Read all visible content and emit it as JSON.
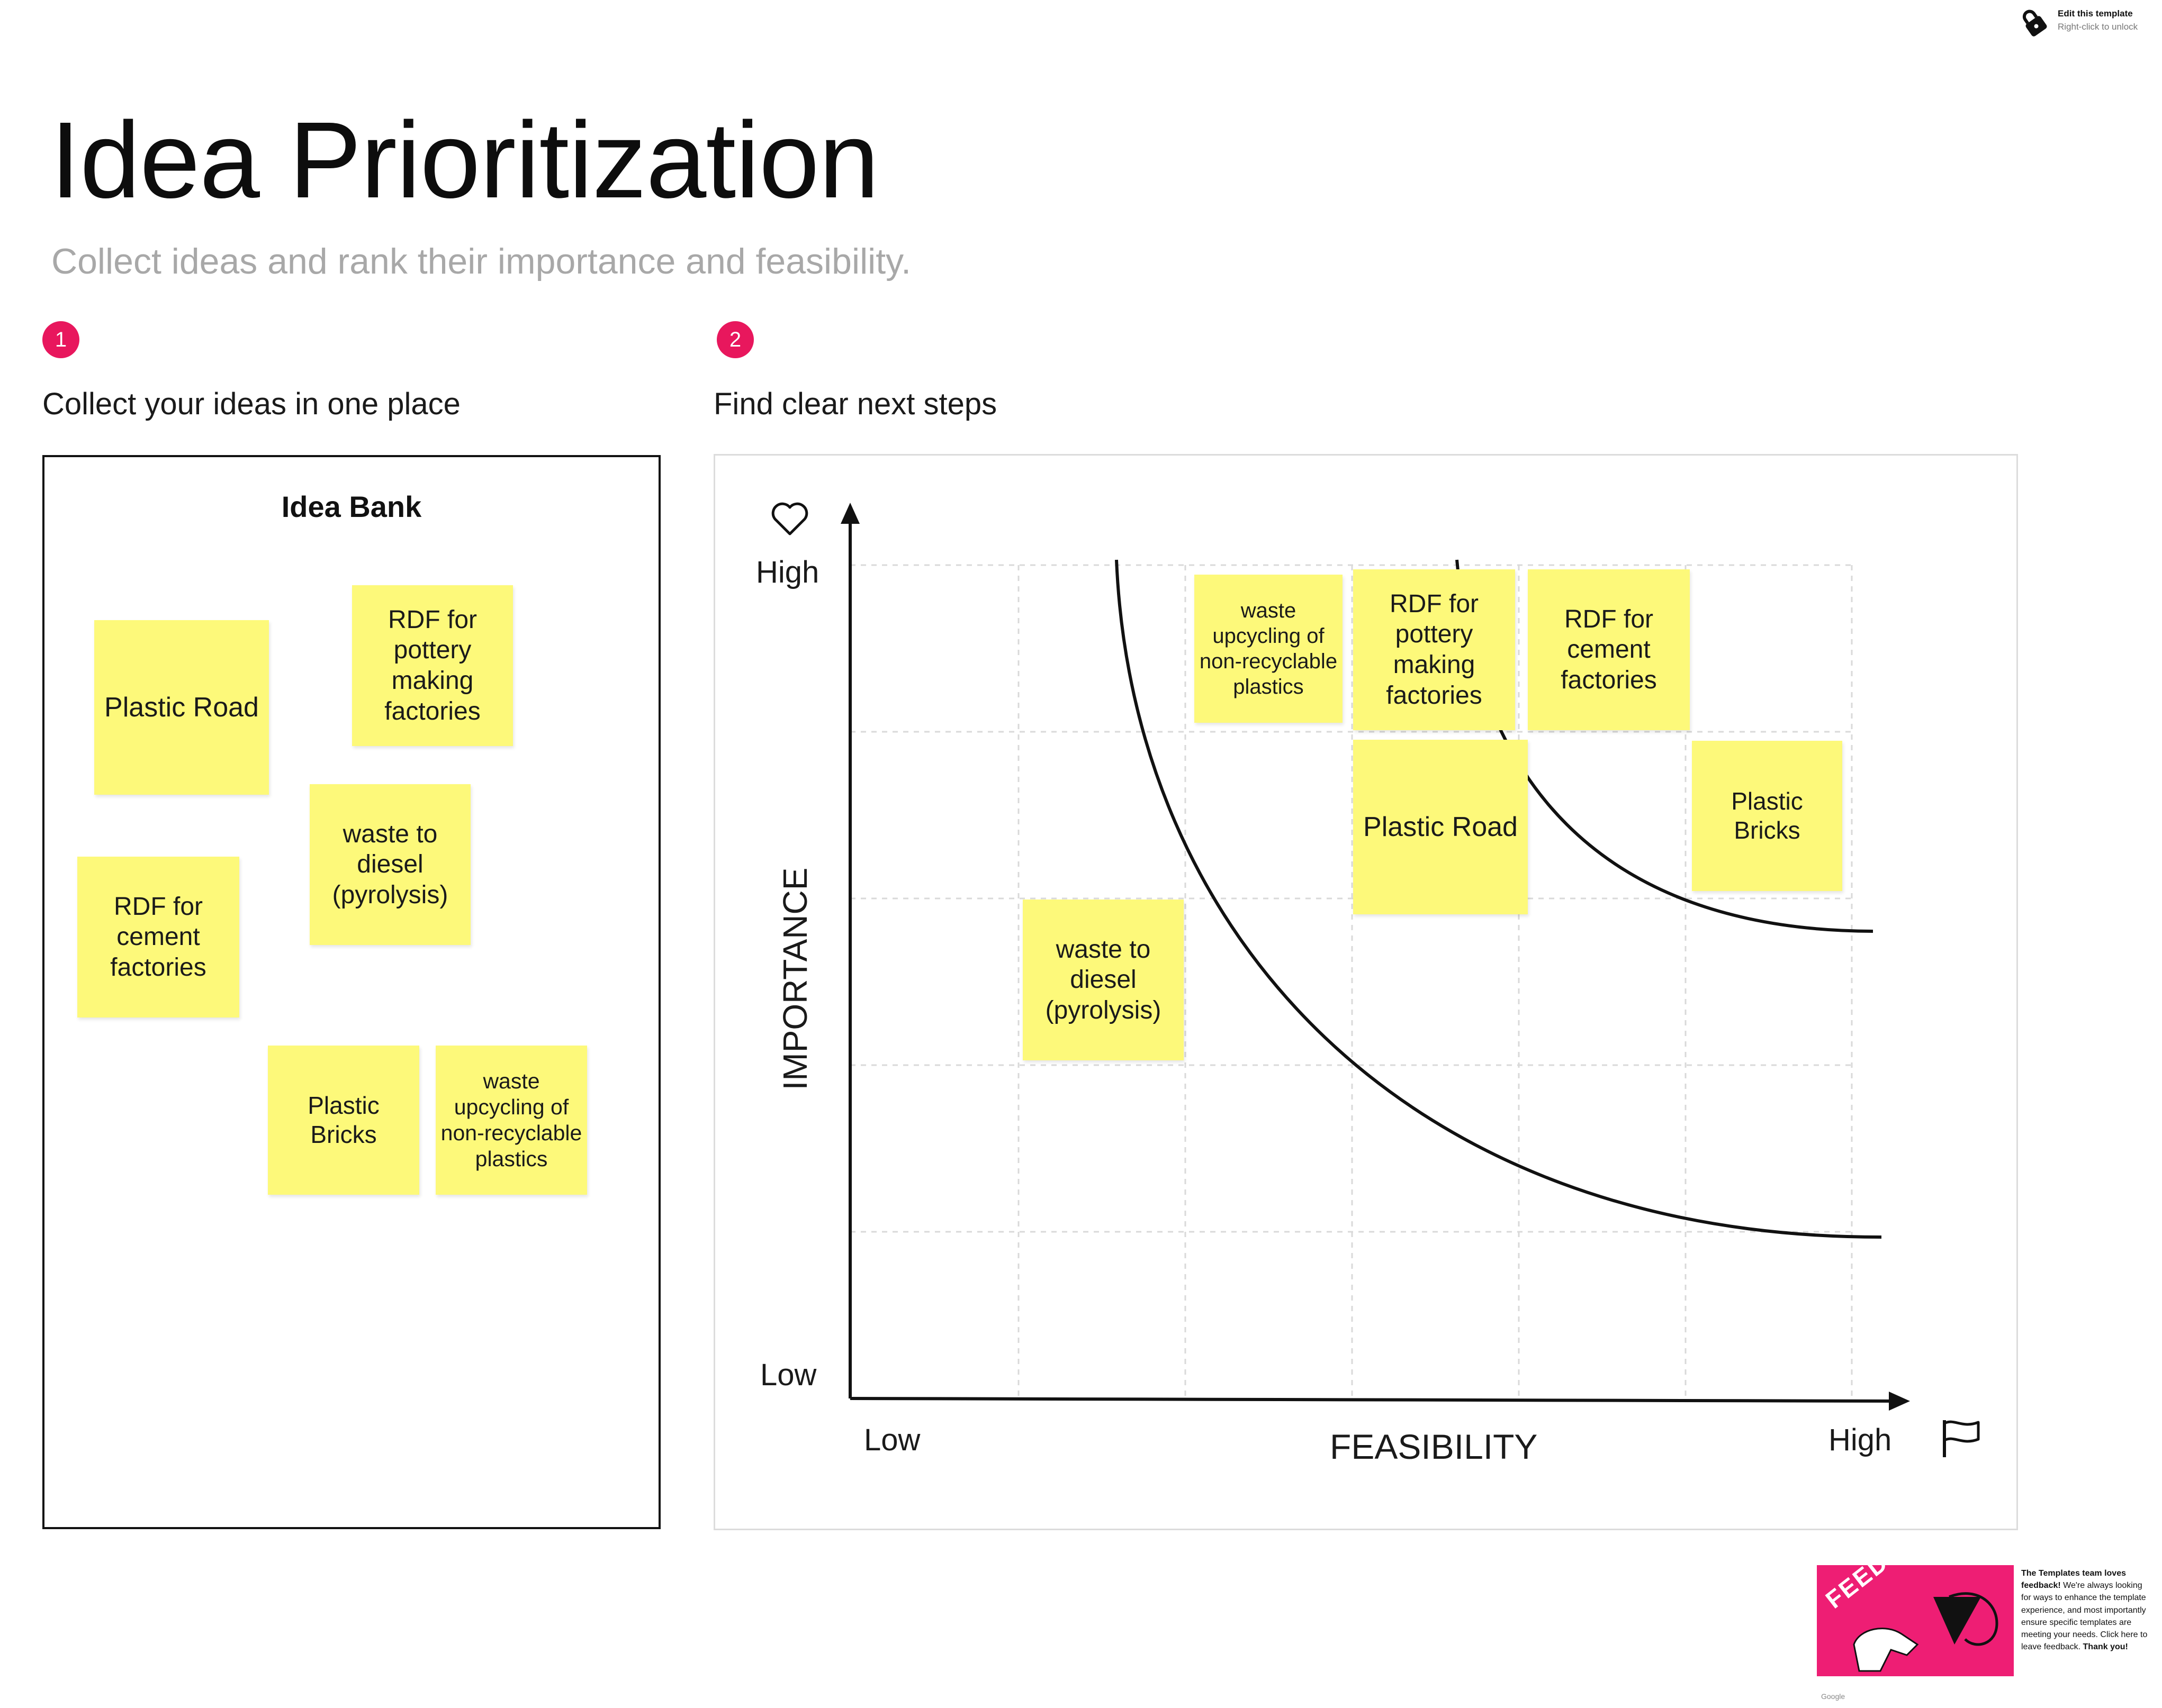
{
  "page": {
    "title": "Idea Prioritization",
    "subtitle": "Collect ideas and rank their importance and feasibility."
  },
  "edit_hint": {
    "line1": "Edit this template",
    "line2": "Right-click to unlock",
    "icon": "lock-icon"
  },
  "steps": [
    {
      "number": "1",
      "label": "Collect your ideas in one place"
    },
    {
      "number": "2",
      "label": "Find clear next steps"
    }
  ],
  "idea_bank": {
    "title": "Idea Bank",
    "notes": [
      "Plastic Road",
      "RDF for pottery making factories",
      "waste to diesel (pyrolysis)",
      "RDF for cement factories",
      "Plastic Bricks",
      "waste upcycling of non-recyclable plastics"
    ]
  },
  "matrix": {
    "y_axis": {
      "label": "IMPORTANCE",
      "high": "High",
      "low": "Low",
      "icon": "heart-icon"
    },
    "x_axis": {
      "label": "FEASIBILITY",
      "low": "Low",
      "high": "High",
      "icon": "flag-icon"
    },
    "notes": [
      "waste upcycling of non-recyclable plastics",
      "RDF for pottery making factories",
      "RDF for cement factories",
      "Plastic Road",
      "Plastic Bricks",
      "waste to diesel (pyrolysis)"
    ]
  },
  "feedback": {
    "badge": "FEEDBACK",
    "lead": "The Templates team loves feedback!",
    "body": "We're always looking for ways to enhance the template experience, and most importantly ensure specific templates are meeting your needs. Click here to leave feedback.",
    "thanks": "Thank you!",
    "brand": "Google",
    "colors": {
      "background": "#ee1e74"
    }
  },
  "colors": {
    "sticky": "#fdf97a",
    "accent": "#e8175d"
  }
}
